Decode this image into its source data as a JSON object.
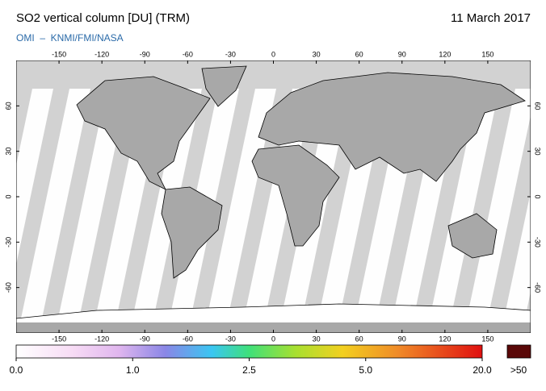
{
  "map": {
    "title": "SO2 vertical column [DU] (TRM)",
    "date": "11 March 2017",
    "subtitle": "OMI  –  KNMI/FMI/NASA",
    "xlim": [
      -180,
      180
    ],
    "ylim": [
      -90,
      90
    ],
    "lon_ticks": [
      -150,
      -120,
      -90,
      -60,
      -30,
      0,
      30,
      60,
      90,
      120,
      150
    ],
    "lat_ticks": [
      -60,
      -30,
      0,
      30,
      60
    ],
    "colorbar_ticks": [
      {
        "value": 0,
        "label": "0.0"
      },
      {
        "value": 1,
        "label": "1.0"
      },
      {
        "value": 2.5,
        "label": "2.5"
      },
      {
        "value": 5,
        "label": "5.0"
      },
      {
        "value": 20,
        "label": "20.0"
      }
    ],
    "overflow_label": ">50"
  }
}
